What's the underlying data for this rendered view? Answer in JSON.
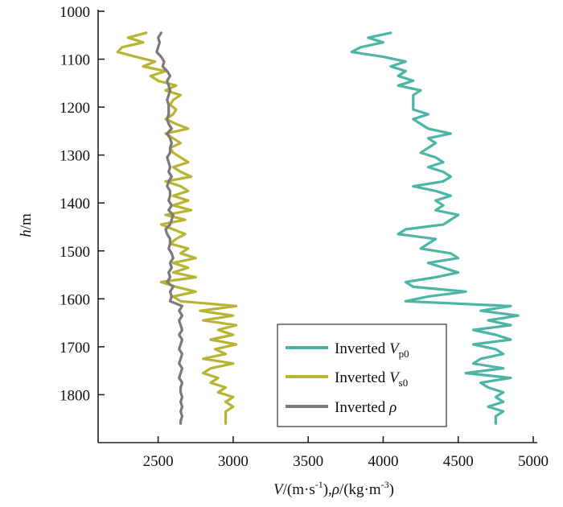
{
  "chart_data": {
    "type": "line",
    "orientation": "vertical-profile",
    "xlabel": {
      "v": "V",
      "unit1": "/(m·s",
      "sup1": "-1",
      "mid": "),",
      "rho": "ρ",
      "unit2": "/(kg·m",
      "sup2": "-3",
      "end": ")"
    },
    "ylabel": {
      "h": "h",
      "unit": "/m"
    },
    "xlim": [
      2100,
      5000
    ],
    "ylim": [
      1000,
      1900
    ],
    "y_inverted": true,
    "x_ticks": [
      2500,
      3000,
      3500,
      4000,
      4500,
      5000
    ],
    "y_ticks": [
      1000,
      1100,
      1200,
      1300,
      1400,
      1500,
      1600,
      1700,
      1800
    ],
    "legend_position": "bottom-right",
    "series": [
      {
        "name": "Vp0",
        "legend": {
          "prefix": "Inverted ",
          "symbol": "V",
          "sub": "p0"
        },
        "color": "#4db5a5",
        "depth": [
          1045,
          1055,
          1065,
          1075,
          1085,
          1095,
          1105,
          1115,
          1125,
          1135,
          1145,
          1155,
          1165,
          1175,
          1185,
          1195,
          1205,
          1215,
          1225,
          1235,
          1245,
          1255,
          1265,
          1275,
          1285,
          1295,
          1305,
          1315,
          1325,
          1335,
          1345,
          1355,
          1365,
          1375,
          1385,
          1395,
          1405,
          1415,
          1425,
          1435,
          1445,
          1455,
          1465,
          1475,
          1485,
          1495,
          1505,
          1515,
          1525,
          1535,
          1545,
          1555,
          1565,
          1575,
          1585,
          1595,
          1605,
          1615,
          1625,
          1635,
          1645,
          1655,
          1665,
          1675,
          1685,
          1695,
          1705,
          1715,
          1725,
          1735,
          1745,
          1755,
          1765,
          1775,
          1785,
          1795,
          1805,
          1815,
          1825,
          1835,
          1845,
          1855,
          1860
        ],
        "values": [
          4050,
          3900,
          4000,
          3850,
          3790,
          4000,
          4150,
          4050,
          4150,
          4100,
          4200,
          4100,
          4250,
          4200,
          4200,
          4200,
          4200,
          4300,
          4200,
          4250,
          4300,
          4450,
          4300,
          4350,
          4300,
          4250,
          4350,
          4400,
          4300,
          4400,
          4450,
          4400,
          4200,
          4350,
          4450,
          4350,
          4400,
          4350,
          4500,
          4450,
          4400,
          4150,
          4100,
          4350,
          4300,
          4250,
          4450,
          4500,
          4300,
          4400,
          4500,
          4350,
          4150,
          4200,
          4550,
          4300,
          4150,
          4850,
          4650,
          4900,
          4700,
          4850,
          4600,
          4750,
          4850,
          4600,
          4750,
          4800,
          4650,
          4600,
          4800,
          4550,
          4850,
          4650,
          4700,
          4800,
          4750,
          4800,
          4700,
          4800,
          4750,
          4750,
          4750
        ]
      },
      {
        "name": "Vs0",
        "legend": {
          "prefix": "Inverted ",
          "symbol": "V",
          "sub": "s0"
        },
        "color": "#b8b433",
        "depth": [
          1045,
          1055,
          1065,
          1075,
          1085,
          1095,
          1105,
          1115,
          1125,
          1135,
          1145,
          1155,
          1165,
          1175,
          1185,
          1195,
          1205,
          1215,
          1225,
          1235,
          1245,
          1255,
          1265,
          1275,
          1285,
          1295,
          1305,
          1315,
          1325,
          1335,
          1345,
          1355,
          1365,
          1375,
          1385,
          1395,
          1405,
          1415,
          1425,
          1435,
          1445,
          1455,
          1465,
          1475,
          1485,
          1495,
          1505,
          1515,
          1525,
          1535,
          1545,
          1555,
          1565,
          1575,
          1585,
          1595,
          1605,
          1615,
          1625,
          1635,
          1645,
          1655,
          1665,
          1675,
          1685,
          1695,
          1705,
          1715,
          1725,
          1735,
          1745,
          1755,
          1765,
          1775,
          1785,
          1795,
          1805,
          1815,
          1825,
          1835,
          1845,
          1855,
          1860
        ],
        "values": [
          2420,
          2300,
          2400,
          2260,
          2230,
          2350,
          2480,
          2400,
          2550,
          2450,
          2500,
          2620,
          2550,
          2650,
          2600,
          2580,
          2620,
          2600,
          2550,
          2620,
          2700,
          2550,
          2600,
          2650,
          2580,
          2600,
          2650,
          2700,
          2600,
          2650,
          2720,
          2550,
          2650,
          2700,
          2600,
          2700,
          2600,
          2720,
          2550,
          2680,
          2520,
          2600,
          2680,
          2620,
          2580,
          2700,
          2650,
          2750,
          2600,
          2700,
          2600,
          2750,
          2520,
          2620,
          2750,
          2600,
          2650,
          3020,
          2780,
          3000,
          2800,
          3020,
          2900,
          3000,
          2850,
          3020,
          2880,
          2950,
          2800,
          3000,
          2850,
          2800,
          2900,
          2850,
          2950,
          2900,
          3000,
          2950,
          3000,
          2950,
          2950,
          2950,
          2950
        ]
      },
      {
        "name": "rho",
        "legend": {
          "prefix": "Inverted ",
          "symbol": "ρ",
          "sub": ""
        },
        "color": "#7f787a",
        "depth": [
          1045,
          1055,
          1065,
          1075,
          1085,
          1095,
          1105,
          1115,
          1125,
          1135,
          1145,
          1155,
          1165,
          1175,
          1185,
          1195,
          1205,
          1215,
          1225,
          1235,
          1245,
          1255,
          1265,
          1275,
          1285,
          1295,
          1305,
          1315,
          1325,
          1335,
          1345,
          1355,
          1365,
          1375,
          1385,
          1395,
          1405,
          1415,
          1425,
          1435,
          1445,
          1455,
          1465,
          1475,
          1485,
          1495,
          1505,
          1515,
          1525,
          1535,
          1545,
          1555,
          1565,
          1575,
          1585,
          1595,
          1605,
          1615,
          1625,
          1635,
          1645,
          1655,
          1665,
          1675,
          1685,
          1695,
          1705,
          1715,
          1725,
          1735,
          1745,
          1755,
          1765,
          1775,
          1785,
          1795,
          1805,
          1815,
          1825,
          1835,
          1845,
          1855,
          1860
        ],
        "values": [
          2520,
          2500,
          2510,
          2500,
          2490,
          2520,
          2540,
          2530,
          2560,
          2580,
          2560,
          2570,
          2580,
          2570,
          2560,
          2570,
          2570,
          2570,
          2560,
          2570,
          2590,
          2560,
          2580,
          2590,
          2580,
          2580,
          2560,
          2570,
          2580,
          2570,
          2590,
          2570,
          2560,
          2580,
          2580,
          2570,
          2590,
          2570,
          2600,
          2590,
          2580,
          2550,
          2560,
          2580,
          2580,
          2570,
          2590,
          2600,
          2580,
          2590,
          2570,
          2580,
          2560,
          2600,
          2580,
          2590,
          2580,
          2660,
          2640,
          2660,
          2640,
          2650,
          2660,
          2640,
          2660,
          2650,
          2640,
          2660,
          2650,
          2640,
          2660,
          2650,
          2640,
          2660,
          2650,
          2650,
          2660,
          2650,
          2660,
          2650,
          2660,
          2650,
          2650
        ]
      }
    ]
  }
}
